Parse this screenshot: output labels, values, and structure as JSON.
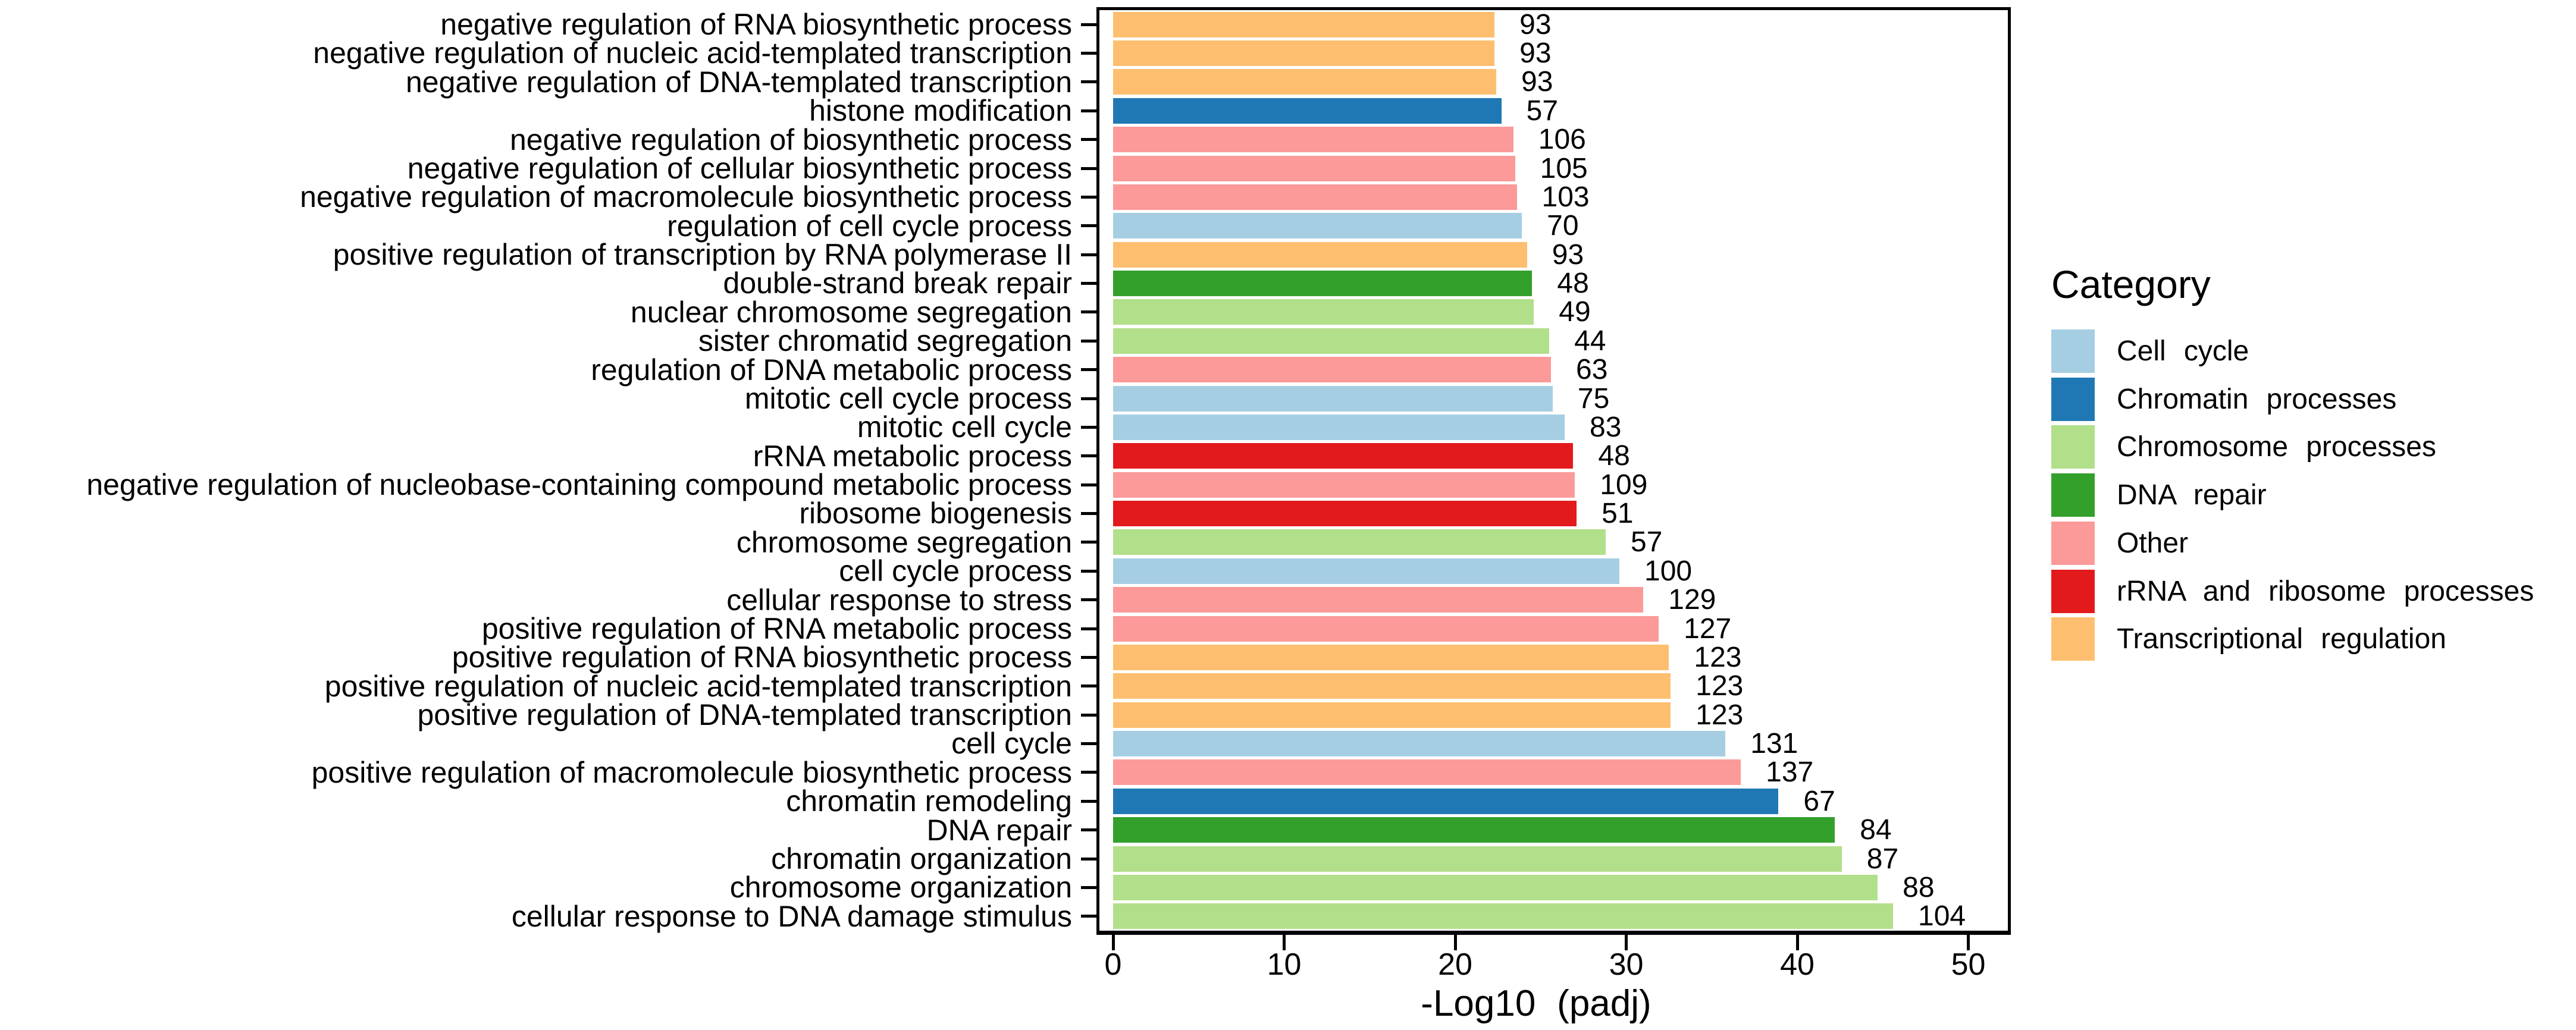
{
  "chart_data": {
    "type": "bar",
    "orientation": "horizontal",
    "xlabel": "-Log10 (padj)",
    "xlim": [
      0,
      52.3
    ],
    "xticks": [
      0,
      10,
      20,
      30,
      40,
      50
    ],
    "grid": false,
    "bar_value_note": "value = -Log10(padj) bar length; count = gene count label printed at bar end",
    "legend": {
      "title": "Category",
      "position": "right",
      "entries": [
        {
          "label": "Cell cycle",
          "color": "#A6CEE3"
        },
        {
          "label": "Chromatin processes",
          "color": "#1F78B4"
        },
        {
          "label": "Chromosome processes",
          "color": "#B2DF8A"
        },
        {
          "label": "DNA repair",
          "color": "#33A02C"
        },
        {
          "label": "Other",
          "color": "#FB9A99"
        },
        {
          "label": "rRNA and ribosome processes",
          "color": "#E31A1C"
        },
        {
          "label": "Transcriptional regulation",
          "color": "#FDBF6F"
        }
      ]
    },
    "bars": [
      {
        "term": "negative regulation of RNA biosynthetic process",
        "value": 22.3,
        "count": 93,
        "category": "Transcriptional regulation"
      },
      {
        "term": "negative regulation of nucleic acid-templated transcription",
        "value": 22.3,
        "count": 93,
        "category": "Transcriptional regulation"
      },
      {
        "term": "negative regulation of DNA-templated transcription",
        "value": 22.4,
        "count": 93,
        "category": "Transcriptional regulation"
      },
      {
        "term": "histone modification",
        "value": 22.7,
        "count": 57,
        "category": "Chromatin processes"
      },
      {
        "term": "negative regulation of biosynthetic process",
        "value": 23.4,
        "count": 106,
        "category": "Other"
      },
      {
        "term": "negative regulation of cellular biosynthetic process",
        "value": 23.5,
        "count": 105,
        "category": "Other"
      },
      {
        "term": "negative regulation of macromolecule biosynthetic process",
        "value": 23.6,
        "count": 103,
        "category": "Other"
      },
      {
        "term": "regulation of cell cycle process",
        "value": 23.9,
        "count": 70,
        "category": "Cell cycle"
      },
      {
        "term": "positive regulation of transcription by RNA polymerase II",
        "value": 24.2,
        "count": 93,
        "category": "Transcriptional regulation"
      },
      {
        "term": "double-strand break repair",
        "value": 24.5,
        "count": 48,
        "category": "DNA repair"
      },
      {
        "term": "nuclear chromosome segregation",
        "value": 24.6,
        "count": 49,
        "category": "Chromosome processes"
      },
      {
        "term": "sister chromatid segregation",
        "value": 25.5,
        "count": 44,
        "category": "Chromosome processes"
      },
      {
        "term": "regulation of DNA metabolic process",
        "value": 25.6,
        "count": 63,
        "category": "Other"
      },
      {
        "term": "mitotic cell cycle process",
        "value": 25.7,
        "count": 75,
        "category": "Cell cycle"
      },
      {
        "term": "mitotic cell cycle",
        "value": 26.4,
        "count": 83,
        "category": "Cell cycle"
      },
      {
        "term": "rRNA metabolic process",
        "value": 26.9,
        "count": 48,
        "category": "rRNA and ribosome processes"
      },
      {
        "term": "negative regulation of nucleobase-containing compound metabolic process",
        "value": 27.0,
        "count": 109,
        "category": "Other"
      },
      {
        "term": "ribosome biogenesis",
        "value": 27.1,
        "count": 51,
        "category": "rRNA and ribosome processes"
      },
      {
        "term": "chromosome segregation",
        "value": 28.8,
        "count": 57,
        "category": "Chromosome processes"
      },
      {
        "term": "cell cycle process",
        "value": 29.6,
        "count": 100,
        "category": "Cell cycle"
      },
      {
        "term": "cellular response to stress",
        "value": 31.0,
        "count": 129,
        "category": "Other"
      },
      {
        "term": "positive regulation of RNA metabolic process",
        "value": 31.9,
        "count": 127,
        "category": "Other"
      },
      {
        "term": "positive regulation of RNA biosynthetic process",
        "value": 32.5,
        "count": 123,
        "category": "Transcriptional regulation"
      },
      {
        "term": "positive regulation of nucleic acid-templated transcription",
        "value": 32.6,
        "count": 123,
        "category": "Transcriptional regulation"
      },
      {
        "term": "positive regulation of DNA-templated transcription",
        "value": 32.6,
        "count": 123,
        "category": "Transcriptional regulation"
      },
      {
        "term": "cell cycle",
        "value": 35.8,
        "count": 131,
        "category": "Cell cycle"
      },
      {
        "term": "positive regulation of macromolecule biosynthetic process",
        "value": 36.7,
        "count": 137,
        "category": "Other"
      },
      {
        "term": "chromatin remodeling",
        "value": 38.9,
        "count": 67,
        "category": "Chromatin processes"
      },
      {
        "term": "DNA repair",
        "value": 42.2,
        "count": 84,
        "category": "DNA repair"
      },
      {
        "term": "chromatin organization",
        "value": 42.6,
        "count": 87,
        "category": "Chromosome processes"
      },
      {
        "term": "chromosome organization",
        "value": 44.7,
        "count": 88,
        "category": "Chromosome processes"
      },
      {
        "term": "cellular response to DNA damage stimulus",
        "value": 45.6,
        "count": 104,
        "category": "Chromosome processes"
      }
    ]
  }
}
